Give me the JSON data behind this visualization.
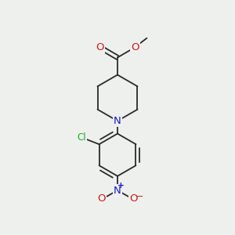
{
  "background_color": "#edf0ed",
  "line_color": "#2a2a2a",
  "bond_width": 1.3,
  "figsize": [
    3.0,
    3.0
  ],
  "dpi": 100,
  "atoms": {
    "N": {
      "color": "#1a1acc",
      "fontsize": 9.5
    },
    "O": {
      "color": "#cc1a1a",
      "fontsize": 9.5
    },
    "Cl": {
      "color": "#22aa22",
      "fontsize": 8.5
    },
    "C": {
      "color": "#2a2a2a",
      "fontsize": 8
    }
  }
}
